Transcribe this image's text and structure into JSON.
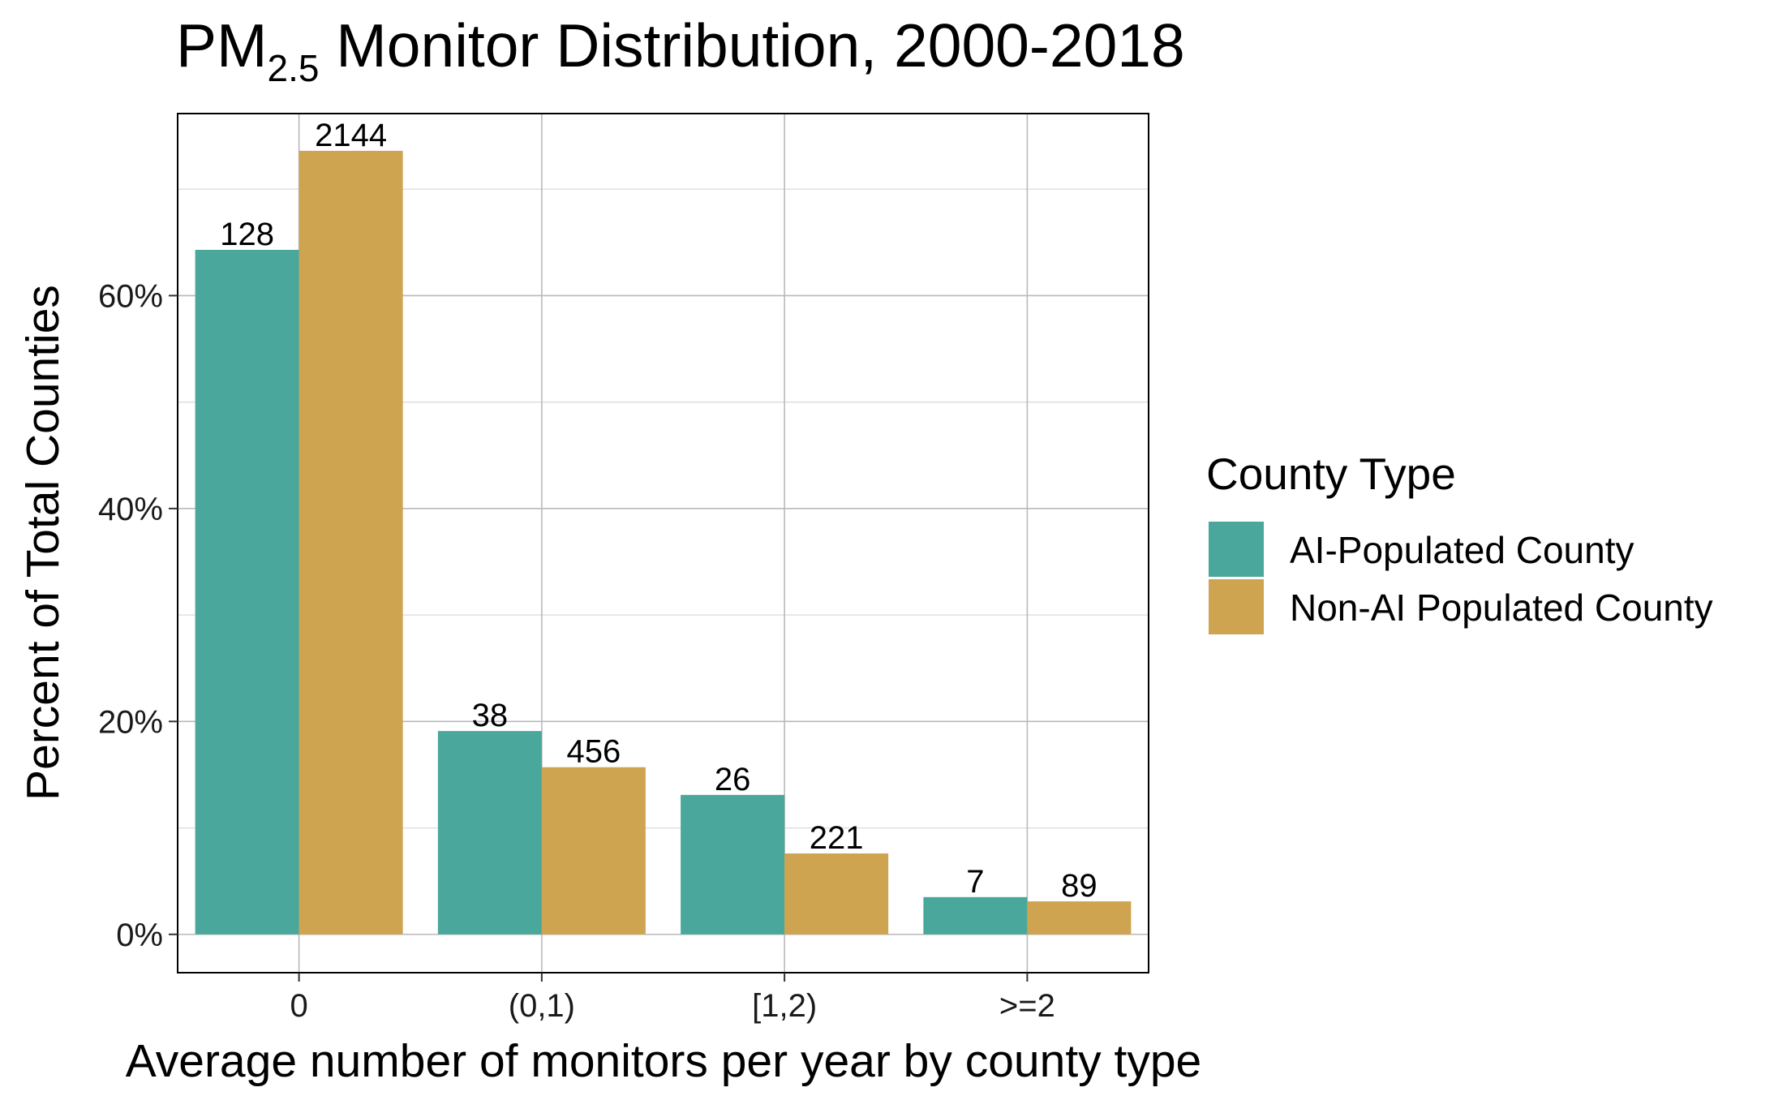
{
  "chart_data": {
    "type": "bar",
    "title": {
      "main": "PM",
      "subscript": "2.5",
      "rest": " Monitor Distribution, 2000-2018"
    },
    "xlabel": "Average number of monitors per year by county type",
    "ylabel": "Percent of Total Counties",
    "categories": [
      "0",
      "(0,1)",
      "[1,2)",
      ">=2"
    ],
    "y_ticks": [
      0,
      20,
      40,
      60
    ],
    "y_tick_labels": [
      "0%",
      "20%",
      "40%",
      "60%"
    ],
    "ylim": [
      -3.6,
      77.1
    ],
    "grid": true,
    "legend": {
      "title": "County Type",
      "position": "right"
    },
    "series": [
      {
        "name": "AI-Populated County",
        "color": "#4aa79b",
        "values": [
          64.3,
          19.1,
          13.1,
          3.5
        ],
        "labels": [
          "128",
          "38",
          "26",
          "7"
        ]
      },
      {
        "name": "Non-AI Populated County",
        "color": "#cea450",
        "values": [
          73.6,
          15.7,
          7.6,
          3.1
        ],
        "labels": [
          "2144",
          "456",
          "221",
          "89"
        ]
      }
    ]
  }
}
